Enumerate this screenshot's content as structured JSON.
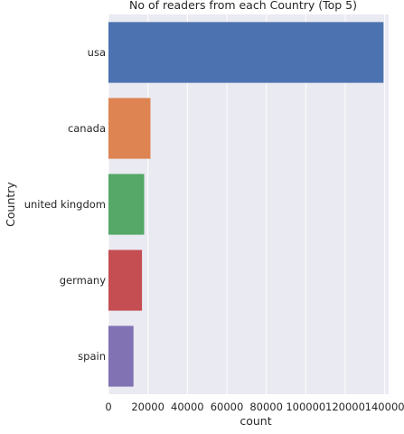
{
  "chart_data": {
    "type": "bar",
    "orientation": "horizontal",
    "title": "No of readers from each Country (Top 5)",
    "xlabel": "count",
    "ylabel": "Country",
    "categories": [
      "usa",
      "canada",
      "united kingdom",
      "germany",
      "spain"
    ],
    "values": [
      139400,
      21300,
      18100,
      17000,
      12700
    ],
    "colors": [
      "#4c72b0",
      "#dd8452",
      "#55a868",
      "#c44e52",
      "#8172b3"
    ],
    "xlim": [
      0,
      142000
    ],
    "xticks": [
      0,
      20000,
      40000,
      60000,
      80000,
      100000,
      120000,
      140000
    ],
    "xtick_labels": [
      "0",
      "20000",
      "40000",
      "60000",
      "80000",
      "100000",
      "120000",
      "140000"
    ],
    "grid": true,
    "background": "#eaeaf2"
  }
}
